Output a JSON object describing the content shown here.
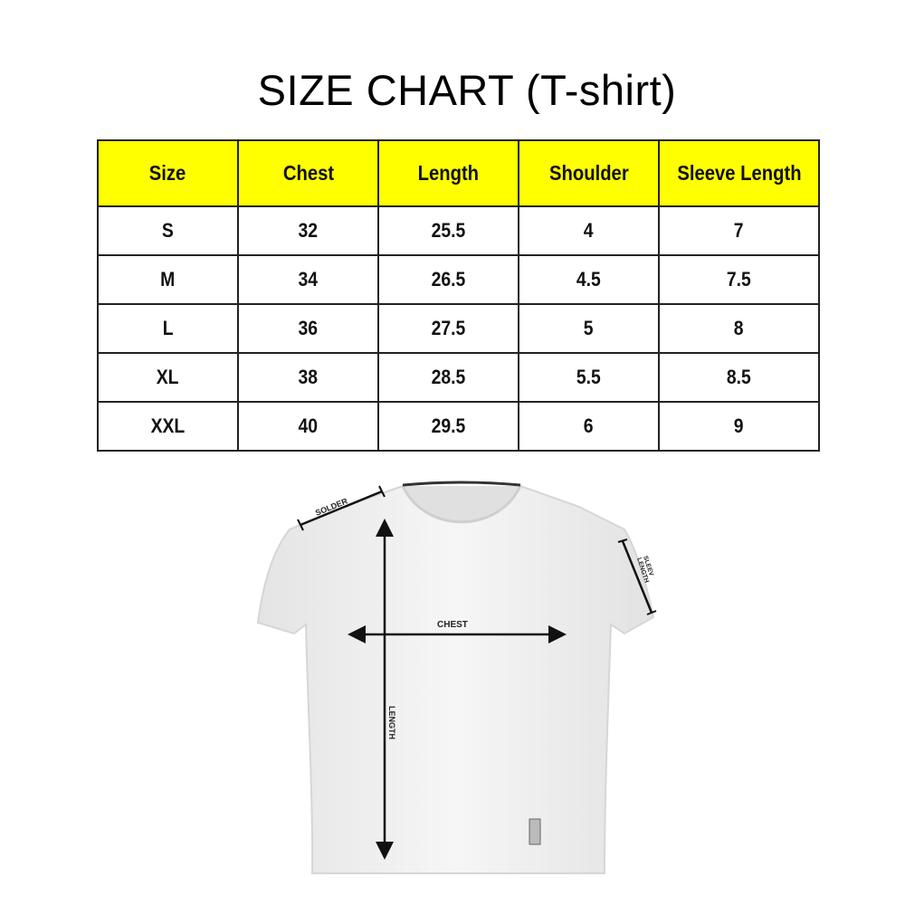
{
  "title": "SIZE CHART (T-shirt)",
  "table": {
    "headers": [
      "Size",
      "Chest",
      "Length",
      "Shoulder",
      "Sleeve Length"
    ],
    "rows": [
      [
        "S",
        "32",
        "25.5",
        "4",
        "7"
      ],
      [
        "M",
        "34",
        "26.5",
        "4.5",
        "7.5"
      ],
      [
        "L",
        "36",
        "27.5",
        "5",
        "8"
      ],
      [
        "XL",
        "38",
        "28.5",
        "5.5",
        "8.5"
      ],
      [
        "XXL",
        "40",
        "29.5",
        "6",
        "9"
      ]
    ],
    "header_color": "#ffff00"
  },
  "diagram": {
    "labels": {
      "shoulder": "SOLDER",
      "chest": "CHEST",
      "length": "LENGTH",
      "sleeve_line1": "SLEEV",
      "sleeve_line2": "LENGTH"
    }
  }
}
